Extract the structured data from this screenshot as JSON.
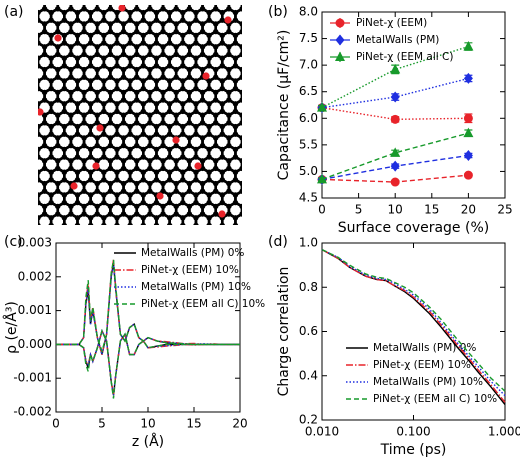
{
  "chart_data": [
    {
      "type": "image",
      "label": "(a)"
    },
    {
      "type": "errorbar",
      "label": "(b)",
      "x_label": "Surface coverage (%)",
      "y_label": "Capacitance (μF/cm²)",
      "x": [
        0,
        10,
        20
      ],
      "xlim": [
        0,
        25
      ],
      "xticks": [
        0,
        5,
        10,
        15,
        20,
        25
      ],
      "ylim": [
        4.5,
        8
      ],
      "yticks": [
        4.5,
        {
          "value": 5,
          "label": "5.0"
        },
        5.5,
        {
          "value": 6,
          "label": "6.0"
        },
        6.5,
        {
          "value": 7,
          "label": "7.0"
        },
        7.5,
        {
          "value": 8,
          "label": "8.0"
        }
      ],
      "legend": "upper left",
      "series": [
        {
          "name": "PiNet-χ (EEM)",
          "color": "#e8232a",
          "marker": "circle",
          "upper": [
            6.2,
            5.98,
            6.0
          ],
          "upper_errors": [
            0.04,
            0.05,
            0.08
          ],
          "lower": [
            4.85,
            4.8,
            4.93
          ],
          "lower_errors": [
            0.03,
            0.03,
            0.03
          ]
        },
        {
          "name": "MetalWalls (PM)",
          "color": "#1f2fe0",
          "marker": "diamond",
          "upper": [
            6.2,
            6.4,
            6.75
          ],
          "upper_errors": [
            0.04,
            0.06,
            0.06
          ],
          "lower": [
            4.85,
            5.1,
            5.3
          ],
          "lower_errors": [
            0.03,
            0.04,
            0.04
          ]
        },
        {
          "name": "PiNet-χ (EEM all C)",
          "color": "#179a2b",
          "marker": "triangle",
          "upper": [
            6.2,
            6.92,
            7.35
          ],
          "upper_errors": [
            0.04,
            0.08,
            0.07
          ],
          "lower": [
            4.85,
            5.35,
            5.72
          ],
          "lower_errors": [
            0.03,
            0.05,
            0.06
          ]
        }
      ]
    },
    {
      "type": "line",
      "label": "(c)",
      "x_label": "z (Å)",
      "y_label": "ρ (e/Å³)",
      "x": [
        0,
        2,
        2.5,
        3,
        3.25,
        3.5,
        3.75,
        4,
        4.5,
        5,
        5.5,
        6,
        6.25,
        6.5,
        7,
        7.5,
        8,
        8.5,
        9,
        9.5,
        10,
        11,
        12,
        13,
        14,
        15,
        16,
        17,
        18,
        19,
        20
      ],
      "xlim": [
        0,
        20
      ],
      "xticks": [
        0,
        5,
        10,
        15,
        20
      ],
      "ylim": [
        -0.002,
        0.003
      ],
      "yticks": [
        -0.002,
        -0.001,
        {
          "value": 0,
          "label": "0.000"
        },
        0.001,
        0.002,
        0.003
      ],
      "legend": "upper right",
      "series": [
        {
          "name": "MetalWalls (PM) 0%",
          "color": "#000000",
          "dash": "solid",
          "values": [
            0,
            0,
            0,
            0.0002,
            0.0012,
            0.0016,
            0.0006,
            0.001,
            0.0002,
            -0.0003,
            0.0003,
            0.002,
            0.0024,
            0.0016,
            0.0003,
            0.0001,
            0.0005,
            0.0006,
            0.0002,
            0.0001,
            0.0002,
            0.0001,
            5e-05,
            3e-05,
            0,
            0,
            0,
            0,
            0,
            0,
            0
          ],
          "mirror_values": [
            0,
            0,
            0,
            -0.0001,
            -0.0005,
            -0.0007,
            -0.0003,
            -0.0005,
            -0.0001,
            0.0004,
            0.0001,
            -0.0011,
            -0.0015,
            -0.0009,
            0.0001,
            0.0003,
            -0.0003,
            -0.0003,
            0,
            0.0001,
            -0.0001,
            -5e-05,
            0,
            0,
            0,
            0,
            0,
            0,
            0,
            0,
            0
          ]
        },
        {
          "name": "PiNet-χ (EEM) 10%",
          "color": "#e8232a",
          "dash": "dashdot",
          "values": [
            0,
            0,
            0,
            0.0002,
            0.0013,
            0.0018,
            0.0007,
            0.0011,
            0.0002,
            -0.0003,
            0.0003,
            0.0021,
            0.0025,
            0.0016,
            0.0003,
            0.0001,
            0.0005,
            0.0006,
            0.0002,
            0.0001,
            0.0002,
            0.0001,
            8e-05,
            5e-05,
            2e-05,
            3e-05,
            0,
            2e-05,
            0,
            0,
            0
          ],
          "mirror_values": [
            0,
            0,
            0,
            -0.0001,
            -0.0005,
            -0.0006,
            -0.0003,
            -0.0005,
            -0.0001,
            0.0004,
            0.0001,
            -0.0011,
            -0.0015,
            -0.0009,
            0.0001,
            0.0003,
            -0.0003,
            -0.0003,
            0,
            0.0001,
            -0.0001,
            -8e-05,
            -5e-05,
            -3e-05,
            0,
            -2e-05,
            0,
            0,
            0,
            0,
            0
          ]
        },
        {
          "name": "MetalWalls (PM) 10%",
          "color": "#1f2fe0",
          "dash": "dotted",
          "values": [
            0,
            0,
            0,
            0.0002,
            0.0012,
            0.0017,
            0.0006,
            0.001,
            0.0002,
            -0.0003,
            0.0003,
            0.002,
            0.0024,
            0.0016,
            0.0003,
            0.0001,
            0.0005,
            0.0006,
            0.0002,
            0.0001,
            0.0002,
            0.0001,
            6e-05,
            4e-05,
            2e-05,
            0,
            2e-05,
            0,
            0,
            0,
            0
          ],
          "mirror_values": [
            0,
            0,
            0,
            -0.0001,
            -0.0005,
            -0.0006,
            -0.0003,
            -0.0005,
            -0.0001,
            0.0004,
            0.0001,
            -0.0011,
            -0.0015,
            -0.0009,
            0.0001,
            0.0003,
            -0.0003,
            -0.0003,
            0,
            0.0001,
            -0.0001,
            -6e-05,
            -4e-05,
            -2e-05,
            0,
            0,
            0,
            0,
            0,
            0,
            0
          ]
        },
        {
          "name": "PiNet-χ (EEM all C) 10%",
          "color": "#179a2b",
          "dash": "dashed",
          "values": [
            0,
            0,
            0,
            0.0002,
            0.0014,
            0.0019,
            0.0007,
            0.0011,
            0.0002,
            -0.0002,
            0.0003,
            0.0021,
            0.0025,
            0.0017,
            0.0003,
            0.0001,
            0.0005,
            0.0006,
            0.0002,
            0.0001,
            0.0002,
            0.0001,
            5e-05,
            3e-05,
            2e-05,
            0,
            0,
            0,
            0,
            0,
            0
          ],
          "mirror_values": [
            0,
            0,
            0,
            -0.0001,
            -0.0006,
            -0.0008,
            -0.0003,
            -0.0005,
            -0.0001,
            0.0004,
            0.0001,
            -0.0011,
            -0.0016,
            -0.0009,
            0.0001,
            0.0003,
            -0.0003,
            -0.0003,
            0,
            0.0001,
            -0.0001,
            -5e-05,
            0,
            0,
            0,
            0,
            0,
            0,
            0,
            0,
            0
          ]
        }
      ]
    },
    {
      "type": "line",
      "label": "(d)",
      "x_label": "Time (ps)",
      "y_label": "Charge correlation",
      "xscale": "log",
      "x": [
        0.01,
        0.015,
        0.02,
        0.03,
        0.04,
        0.05,
        0.06,
        0.08,
        0.1,
        0.15,
        0.2,
        0.3,
        0.4,
        0.5,
        0.7,
        1.0
      ],
      "xlim": [
        0.01,
        1
      ],
      "xticks": [
        {
          "value": 0.01,
          "label": "0.010"
        },
        {
          "value": 0.1,
          "label": "0.100"
        },
        {
          "value": 1,
          "label": "1.000"
        }
      ],
      "ylim": [
        0.2,
        1
      ],
      "yticks": [
        0.2,
        0.4,
        0.6,
        0.8,
        {
          "value": 1,
          "label": "1.0"
        }
      ],
      "legend": "lower left",
      "series": [
        {
          "name": "MetalWalls (PM) 0%",
          "color": "#000000",
          "dash": "solid",
          "values": [
            0.97,
            0.93,
            0.89,
            0.85,
            0.835,
            0.83,
            0.81,
            0.78,
            0.75,
            0.68,
            0.62,
            0.53,
            0.47,
            0.42,
            0.35,
            0.27
          ]
        },
        {
          "name": "PiNet-χ (EEM) 10%",
          "color": "#e8232a",
          "dash": "dashdot",
          "values": [
            0.97,
            0.93,
            0.89,
            0.85,
            0.835,
            0.83,
            0.81,
            0.785,
            0.755,
            0.69,
            0.63,
            0.54,
            0.48,
            0.43,
            0.36,
            0.28
          ]
        },
        {
          "name": "MetalWalls (PM) 10%",
          "color": "#1f2fe0",
          "dash": "dotted",
          "values": [
            0.97,
            0.935,
            0.895,
            0.855,
            0.84,
            0.835,
            0.82,
            0.79,
            0.765,
            0.7,
            0.64,
            0.55,
            0.49,
            0.445,
            0.375,
            0.31
          ]
        },
        {
          "name": "PiNet-χ (EEM all C) 10%",
          "color": "#179a2b",
          "dash": "dashed",
          "values": [
            0.97,
            0.935,
            0.9,
            0.86,
            0.845,
            0.84,
            0.825,
            0.8,
            0.775,
            0.71,
            0.655,
            0.565,
            0.505,
            0.46,
            0.39,
            0.33
          ]
        }
      ]
    }
  ]
}
